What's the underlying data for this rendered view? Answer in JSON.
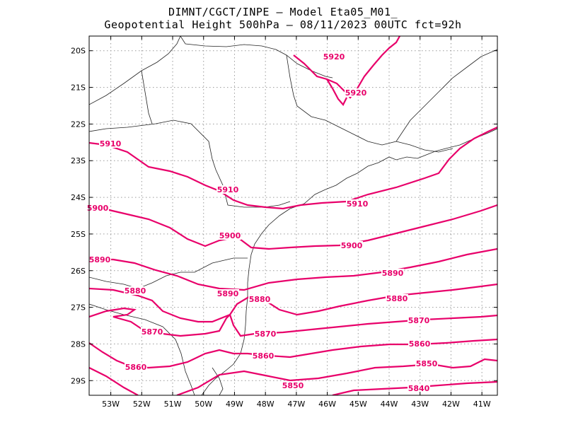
{
  "title_line1": "DIMNT/CGCT/INPE –  Model Eta05_M01_",
  "title_line2": "Geopotential Height 500hPa –  08/11/2023 00UTC fct=92h",
  "map": {
    "lon_range": [
      -53.7,
      -40.5
    ],
    "lat_range": [
      -29.4,
      -19.6
    ],
    "grid": "dotted",
    "contour_color": "#e8006a",
    "coast_color": "#000000",
    "lat_ticks": [
      "20S",
      "21S",
      "22S",
      "23S",
      "24S",
      "25S",
      "26S",
      "27S",
      "28S",
      "29S"
    ],
    "lon_ticks": [
      "53W",
      "52W",
      "51W",
      "50W",
      "49W",
      "48W",
      "47W",
      "46W",
      "45W",
      "44W",
      "43W",
      "42W",
      "41W"
    ],
    "contour_labels": [
      "5920",
      "5920",
      "5910",
      "5910",
      "5910",
      "5900",
      "5900",
      "5900",
      "5890",
      "5890",
      "5890",
      "5880",
      "5880",
      "5880",
      "5870",
      "5870",
      "5870",
      "5860",
      "5860",
      "5860",
      "5850",
      "5850",
      "5840"
    ]
  }
}
